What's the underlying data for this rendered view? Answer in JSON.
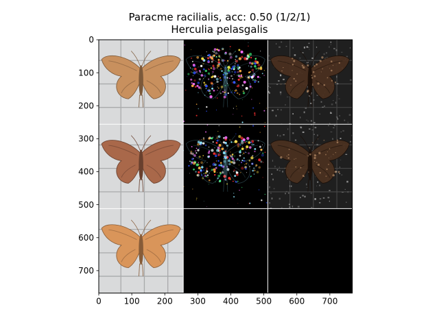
{
  "title_lines": [
    "Paracme racilialis, acc: 0.50 (1/2/1)",
    "Herculia pelasgalis"
  ],
  "chart_data": {
    "type": "image-grid",
    "title": "Paracme racilialis, acc: 0.50 (1/2/1)\nHerculia pelasgalis",
    "grid": {
      "rows": 3,
      "cols": 3,
      "panel_size": 256
    },
    "xlim": [
      0,
      768
    ],
    "ylim": [
      768,
      0
    ],
    "x_ticks": [
      0,
      100,
      200,
      300,
      400,
      500,
      600,
      700
    ],
    "y_ticks": [
      0,
      100,
      200,
      300,
      400,
      500,
      600,
      700
    ],
    "panels": [
      {
        "row": 0,
        "col": 0,
        "kind": "moth-photo",
        "tone": "#c8905e"
      },
      {
        "row": 0,
        "col": 1,
        "kind": "saliency-color"
      },
      {
        "row": 0,
        "col": 2,
        "kind": "masked-photo"
      },
      {
        "row": 1,
        "col": 0,
        "kind": "moth-photo",
        "tone": "#a9684a"
      },
      {
        "row": 1,
        "col": 1,
        "kind": "saliency-color"
      },
      {
        "row": 1,
        "col": 2,
        "kind": "masked-photo"
      },
      {
        "row": 2,
        "col": 0,
        "kind": "moth-photo",
        "tone": "#d9955a"
      },
      {
        "row": 2,
        "col": 1,
        "kind": "blank"
      },
      {
        "row": 2,
        "col": 2,
        "kind": "blank"
      }
    ],
    "colors": {
      "background_gray": "#d9dadb",
      "grid_line": "#a9aaab",
      "separator": "#ffffff",
      "black": "#000000"
    }
  }
}
